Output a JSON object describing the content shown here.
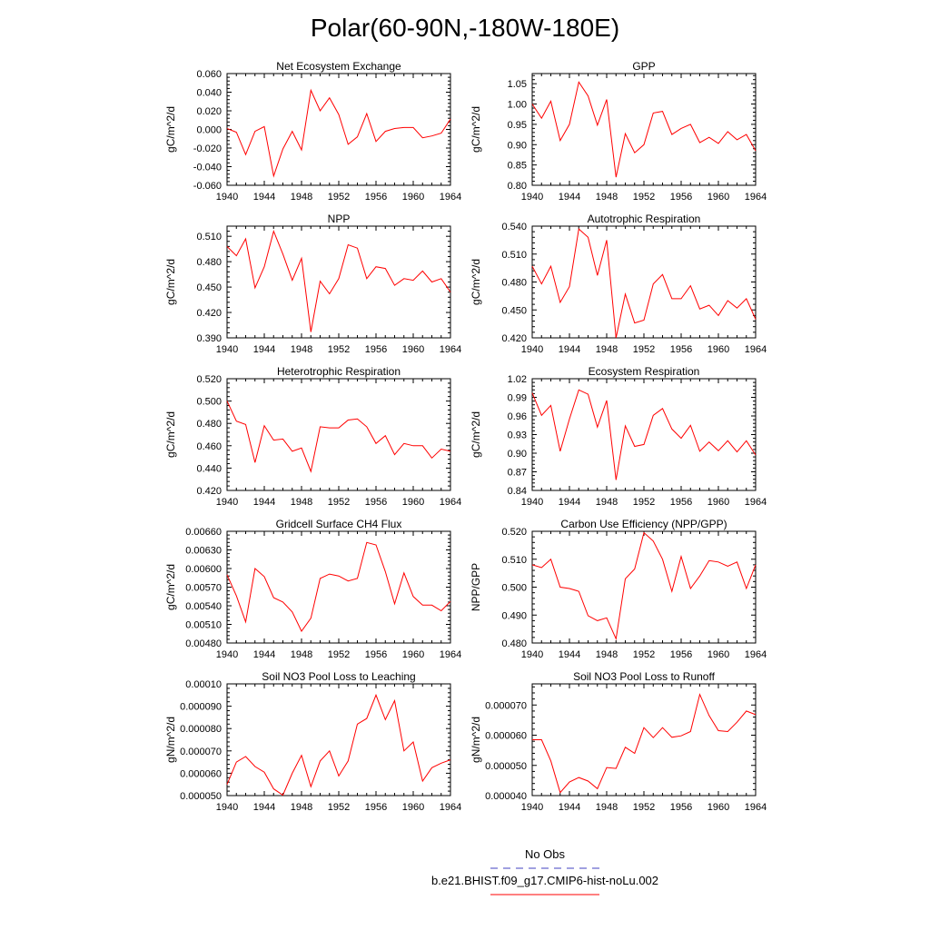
{
  "figure": {
    "title": "Polar(60-90N,-180W-180E)",
    "legend": [
      {
        "label": "No Obs",
        "color": "#4040c0",
        "dashed": true
      },
      {
        "label": "b.e21.BHIST.f09_g17.CMIP6-hist-noLu.002",
        "color": "#ff0000",
        "dashed": false
      }
    ]
  },
  "chart_data": [
    {
      "type": "line",
      "title": "Net Ecosystem Exchange",
      "ylabel": "gC/m^2/d",
      "xlim": [
        1940,
        1964
      ],
      "ylim": [
        -0.06,
        0.06
      ],
      "xticks": [
        "1940",
        "1944",
        "1948",
        "1952",
        "1956",
        "1960",
        "1964"
      ],
      "yticks": [
        "-0.060",
        "-0.040",
        "-0.020",
        "0.000",
        "0.020",
        "0.040",
        "0.060"
      ],
      "x": [
        1940,
        1941,
        1942,
        1943,
        1944,
        1945,
        1946,
        1947,
        1948,
        1949,
        1950,
        1951,
        1952,
        1953,
        1954,
        1955,
        1956,
        1957,
        1958,
        1959,
        1960,
        1961,
        1962,
        1963,
        1964
      ],
      "series": [
        {
          "color": "#ff0000",
          "values": [
            0.001,
            -0.003,
            -0.027,
            -0.002,
            0.003,
            -0.05,
            -0.021,
            -0.002,
            -0.022,
            0.042,
            0.02,
            0.034,
            0.016,
            -0.016,
            -0.008,
            0.017,
            -0.013,
            -0.002,
            0.001,
            0.002,
            0.002,
            -0.009,
            -0.007,
            -0.004,
            0.011
          ]
        }
      ]
    },
    {
      "type": "line",
      "title": "GPP",
      "ylabel": "gC/m^2/d",
      "xlim": [
        1940,
        1964
      ],
      "ylim": [
        0.8,
        1.075
      ],
      "xticks": [
        "1940",
        "1944",
        "1948",
        "1952",
        "1956",
        "1960",
        "1964"
      ],
      "yticks": [
        "0.80",
        "0.85",
        "0.90",
        "0.95",
        "1.00",
        "1.05"
      ],
      "x": [
        1940,
        1941,
        1942,
        1943,
        1944,
        1945,
        1946,
        1947,
        1948,
        1949,
        1950,
        1951,
        1952,
        1953,
        1954,
        1955,
        1956,
        1957,
        1958,
        1959,
        1960,
        1961,
        1962,
        1963,
        1964
      ],
      "series": [
        {
          "color": "#ff0000",
          "values": [
            1.0,
            0.965,
            1.007,
            0.91,
            0.95,
            1.054,
            1.02,
            0.948,
            1.011,
            0.82,
            0.927,
            0.88,
            0.9,
            0.978,
            0.982,
            0.925,
            0.94,
            0.95,
            0.905,
            0.918,
            0.903,
            0.932,
            0.912,
            0.925,
            0.885
          ]
        }
      ]
    },
    {
      "type": "line",
      "title": "NPP",
      "ylabel": "gC/m^2/d",
      "xlim": [
        1940,
        1964
      ],
      "ylim": [
        0.39,
        0.522
      ],
      "xticks": [
        "1940",
        "1944",
        "1948",
        "1952",
        "1956",
        "1960",
        "1964"
      ],
      "yticks": [
        "0.390",
        "0.420",
        "0.450",
        "0.480",
        "0.510"
      ],
      "x": [
        1940,
        1941,
        1942,
        1943,
        1944,
        1945,
        1946,
        1947,
        1948,
        1949,
        1950,
        1951,
        1952,
        1953,
        1954,
        1955,
        1956,
        1957,
        1958,
        1959,
        1960,
        1961,
        1962,
        1963,
        1964
      ],
      "series": [
        {
          "color": "#ff0000",
          "values": [
            0.498,
            0.487,
            0.507,
            0.449,
            0.474,
            0.516,
            0.489,
            0.458,
            0.484,
            0.397,
            0.457,
            0.442,
            0.46,
            0.5,
            0.496,
            0.46,
            0.474,
            0.472,
            0.452,
            0.46,
            0.458,
            0.469,
            0.456,
            0.46,
            0.444
          ]
        }
      ]
    },
    {
      "type": "line",
      "title": "Autotrophic Respiration",
      "ylabel": "gC/m^2/d",
      "xlim": [
        1940,
        1964
      ],
      "ylim": [
        0.42,
        0.54
      ],
      "xticks": [
        "1940",
        "1944",
        "1948",
        "1952",
        "1956",
        "1960",
        "1964"
      ],
      "yticks": [
        "0.420",
        "0.450",
        "0.480",
        "0.510",
        "0.540"
      ],
      "x": [
        1940,
        1941,
        1942,
        1943,
        1944,
        1945,
        1946,
        1947,
        1948,
        1949,
        1950,
        1951,
        1952,
        1953,
        1954,
        1955,
        1956,
        1957,
        1958,
        1959,
        1960,
        1961,
        1962,
        1963,
        1964
      ],
      "series": [
        {
          "color": "#ff0000",
          "values": [
            0.497,
            0.478,
            0.497,
            0.458,
            0.475,
            0.537,
            0.528,
            0.487,
            0.525,
            0.42,
            0.467,
            0.436,
            0.439,
            0.478,
            0.488,
            0.462,
            0.462,
            0.476,
            0.451,
            0.455,
            0.444,
            0.46,
            0.452,
            0.462,
            0.44
          ]
        }
      ]
    },
    {
      "type": "line",
      "title": "Heterotrophic Respiration",
      "ylabel": "gC/m^2/d",
      "xlim": [
        1940,
        1964
      ],
      "ylim": [
        0.42,
        0.52
      ],
      "xticks": [
        "1940",
        "1944",
        "1948",
        "1952",
        "1956",
        "1960",
        "1964"
      ],
      "yticks": [
        "0.420",
        "0.440",
        "0.460",
        "0.480",
        "0.500",
        "0.520"
      ],
      "x": [
        1940,
        1941,
        1942,
        1943,
        1944,
        1945,
        1946,
        1947,
        1948,
        1949,
        1950,
        1951,
        1952,
        1953,
        1954,
        1955,
        1956,
        1957,
        1958,
        1959,
        1960,
        1961,
        1962,
        1963,
        1964
      ],
      "series": [
        {
          "color": "#ff0000",
          "values": [
            0.5,
            0.482,
            0.479,
            0.445,
            0.478,
            0.465,
            0.466,
            0.455,
            0.458,
            0.437,
            0.477,
            0.476,
            0.476,
            0.483,
            0.484,
            0.477,
            0.462,
            0.469,
            0.452,
            0.462,
            0.46,
            0.46,
            0.449,
            0.457,
            0.455
          ]
        }
      ]
    },
    {
      "type": "line",
      "title": "Ecosystem Respiration",
      "ylabel": "gC/m^2/d",
      "xlim": [
        1940,
        1964
      ],
      "ylim": [
        0.84,
        1.02
      ],
      "xticks": [
        "1940",
        "1944",
        "1948",
        "1952",
        "1956",
        "1960",
        "1964"
      ],
      "yticks": [
        "0.84",
        "0.87",
        "0.90",
        "0.93",
        "0.96",
        "0.99",
        "1.02"
      ],
      "x": [
        1940,
        1941,
        1942,
        1943,
        1944,
        1945,
        1946,
        1947,
        1948,
        1949,
        1950,
        1951,
        1952,
        1953,
        1954,
        1955,
        1956,
        1957,
        1958,
        1959,
        1960,
        1961,
        1962,
        1963,
        1964
      ],
      "series": [
        {
          "color": "#ff0000",
          "values": [
            0.997,
            0.961,
            0.977,
            0.903,
            0.955,
            1.002,
            0.995,
            0.942,
            0.985,
            0.857,
            0.944,
            0.911,
            0.914,
            0.961,
            0.972,
            0.939,
            0.924,
            0.945,
            0.903,
            0.918,
            0.904,
            0.92,
            0.902,
            0.92,
            0.897
          ]
        }
      ]
    },
    {
      "type": "line",
      "title": "Gridcell Surface CH4 Flux",
      "ylabel": "gC/m^2/d",
      "xlim": [
        1940,
        1964
      ],
      "ylim": [
        0.0048,
        0.0066
      ],
      "xticks": [
        "1940",
        "1944",
        "1948",
        "1952",
        "1956",
        "1960",
        "1964"
      ],
      "yticks": [
        "0.00480",
        "0.00510",
        "0.00540",
        "0.00570",
        "0.00600",
        "0.00630",
        "0.00660"
      ],
      "x": [
        1940,
        1941,
        1942,
        1943,
        1944,
        1945,
        1946,
        1947,
        1948,
        1949,
        1950,
        1951,
        1952,
        1953,
        1954,
        1955,
        1956,
        1957,
        1958,
        1959,
        1960,
        1961,
        1962,
        1963,
        1964
      ],
      "series": [
        {
          "color": "#ff0000",
          "values": [
            0.0059,
            0.00556,
            0.00514,
            0.006,
            0.00587,
            0.00553,
            0.00546,
            0.0053,
            0.00499,
            0.0052,
            0.00584,
            0.00591,
            0.00588,
            0.0058,
            0.00584,
            0.00642,
            0.00638,
            0.00595,
            0.00543,
            0.00593,
            0.00555,
            0.00541,
            0.00541,
            0.00532,
            0.00547
          ]
        }
      ]
    },
    {
      "type": "line",
      "title": "Carbon Use Efficiency (NPP/GPP)",
      "ylabel": "NPP/GPP",
      "xlim": [
        1940,
        1964
      ],
      "ylim": [
        0.48,
        0.52
      ],
      "xticks": [
        "1940",
        "1944",
        "1948",
        "1952",
        "1956",
        "1960",
        "1964"
      ],
      "yticks": [
        "0.480",
        "0.490",
        "0.500",
        "0.510",
        "0.520"
      ],
      "x": [
        1940,
        1941,
        1942,
        1943,
        1944,
        1945,
        1946,
        1947,
        1948,
        1949,
        1950,
        1951,
        1952,
        1953,
        1954,
        1955,
        1956,
        1957,
        1958,
        1959,
        1960,
        1961,
        1962,
        1963,
        1964
      ],
      "series": [
        {
          "color": "#ff0000",
          "values": [
            0.508,
            0.507,
            0.51,
            0.5,
            0.4995,
            0.4985,
            0.4898,
            0.488,
            0.489,
            0.4815,
            0.503,
            0.5065,
            0.5195,
            0.5165,
            0.51,
            0.4985,
            0.511,
            0.4995,
            0.504,
            0.5095,
            0.509,
            0.5075,
            0.509,
            0.4995,
            0.508
          ]
        }
      ]
    },
    {
      "type": "line",
      "title": "Soil NO3 Pool Loss to Leaching",
      "ylabel": "gN/m^2/d",
      "xlim": [
        1940,
        1964
      ],
      "ylim": [
        5e-05,
        0.0001
      ],
      "xticks": [
        "1940",
        "1944",
        "1948",
        "1952",
        "1956",
        "1960",
        "1964"
      ],
      "yticks": [
        "0.000050",
        "0.000060",
        "0.000070",
        "0.000080",
        "0.000090",
        "0.00010"
      ],
      "x": [
        1940,
        1941,
        1942,
        1943,
        1944,
        1945,
        1946,
        1947,
        1948,
        1949,
        1950,
        1951,
        1952,
        1953,
        1954,
        1955,
        1956,
        1957,
        1958,
        1959,
        1960,
        1961,
        1962,
        1963,
        1964
      ],
      "series": [
        {
          "color": "#ff0000",
          "values": [
            5.5e-05,
            6.5e-05,
            6.75e-05,
            6.3e-05,
            6.05e-05,
            5.3e-05,
            5.02e-05,
            6e-05,
            6.8e-05,
            5.4e-05,
            6.55e-05,
            7e-05,
            5.88e-05,
            6.55e-05,
            8.2e-05,
            8.45e-05,
            9.5e-05,
            8.4e-05,
            9.25e-05,
            7e-05,
            7.4e-05,
            5.65e-05,
            6.25e-05,
            6.45e-05,
            6.6e-05
          ]
        }
      ]
    },
    {
      "type": "line",
      "title": "Soil NO3 Pool Loss to Runoff",
      "ylabel": "gN/m^2/d",
      "xlim": [
        1940,
        1964
      ],
      "ylim": [
        4e-05,
        7.7e-05
      ],
      "xticks": [
        "1940",
        "1944",
        "1948",
        "1952",
        "1956",
        "1960",
        "1964"
      ],
      "yticks": [
        "0.000040",
        "0.000050",
        "0.000060",
        "0.000070"
      ],
      "x": [
        1940,
        1941,
        1942,
        1943,
        1944,
        1945,
        1946,
        1947,
        1948,
        1949,
        1950,
        1951,
        1952,
        1953,
        1954,
        1955,
        1956,
        1957,
        1958,
        1959,
        1960,
        1961,
        1962,
        1963,
        1964
      ],
      "series": [
        {
          "color": "#ff0000",
          "values": [
            5.85e-05,
            5.85e-05,
            5.15e-05,
            4.1e-05,
            4.45e-05,
            4.6e-05,
            4.48e-05,
            4.23e-05,
            4.93e-05,
            4.9e-05,
            5.6e-05,
            5.4e-05,
            6.25e-05,
            5.92e-05,
            6.25e-05,
            5.93e-05,
            5.98e-05,
            6.12e-05,
            7.35e-05,
            6.65e-05,
            6.15e-05,
            6.12e-05,
            6.43e-05,
            6.8e-05,
            6.68e-05
          ]
        }
      ]
    }
  ]
}
